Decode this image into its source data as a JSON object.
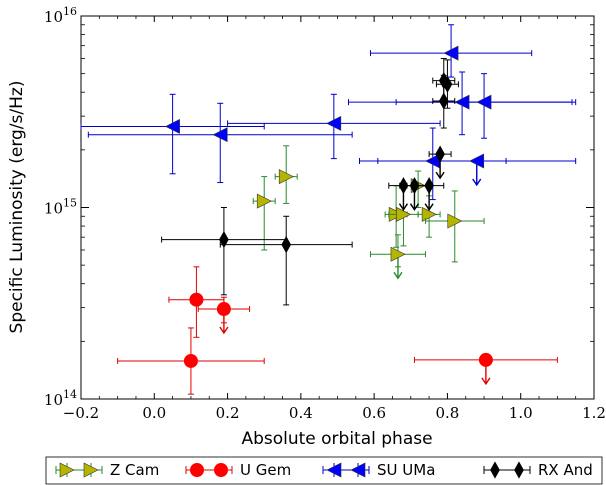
{
  "chart_data": {
    "type": "scatter",
    "title": "",
    "xlabel": "Absolute orbital phase",
    "ylabel": "Specific Luminosity (erg/s/Hz)",
    "xlim": [
      -0.2,
      1.2
    ],
    "ylim": [
      100000000000000.0,
      1e+16
    ],
    "yscale": "log",
    "x_ticks": [
      "−0.2",
      "0.0",
      "0.2",
      "0.4",
      "0.6",
      "0.8",
      "1.0",
      "1.2"
    ],
    "x_tick_values": [
      -0.2,
      0.0,
      0.2,
      0.4,
      0.6,
      0.8,
      1.0,
      1.2
    ],
    "y_ticks": [
      {
        "base": "10",
        "exp": "14",
        "value": 100000000000000.0
      },
      {
        "base": "10",
        "exp": "15",
        "value": 1000000000000000.0
      },
      {
        "base": "10",
        "exp": "16",
        "value": 1e+16
      }
    ],
    "legend_position": "bottom (outside plot)",
    "series": [
      {
        "name": "Z Cam",
        "marker": "triangle-right",
        "color": "#b5b500",
        "error_color": "#2a8a2a",
        "points": [
          {
            "x": 0.36,
            "y": 1450000000000000.0,
            "xerr": 0.03,
            "yup": 2100000000000000.0,
            "ydn": 1050000000000000.0
          },
          {
            "x": 0.3,
            "y": 1080000000000000.0,
            "xerr": 0.03,
            "yup": 1450000000000000.0,
            "ydn": 600000000000000.0
          },
          {
            "x": 0.66,
            "y": 920000000000000.0,
            "xerr": 0.03,
            "yup": 1300000000000000.0,
            "ydn": 620000000000000.0
          },
          {
            "x": 0.68,
            "y": 920000000000000.0,
            "xerr": 0.04,
            "yup": 1280000000000000.0,
            "ydn": 630000000000000.0
          },
          {
            "x": 0.72,
            "y": 1300000000000000.0,
            "xerr": 0.03,
            "yup": 1550000000000000.0,
            "ydn": 1000000000000000.0
          },
          {
            "x": 0.75,
            "y": 920000000000000.0,
            "xerr": 0.03,
            "yup": 1150000000000000.0,
            "ydn": 700000000000000.0
          },
          {
            "x": 0.82,
            "y": 850000000000000.0,
            "xerr": 0.08,
            "yup": 1220000000000000.0,
            "ydn": 520000000000000.0
          },
          {
            "x": 0.665,
            "y": 570000000000000.0,
            "xerr": 0.075,
            "yup": 720000000000000.0,
            "ydn": 490000000000000.0,
            "upper_limit": true
          }
        ]
      },
      {
        "name": "U Gem",
        "marker": "circle",
        "color": "#ff0000",
        "error_color": "#e00000",
        "points": [
          {
            "x": 0.115,
            "y": 330000000000000.0,
            "xerr": 0.075,
            "yup": 490000000000000.0,
            "ydn": 210000000000000.0
          },
          {
            "x": 0.19,
            "y": 295000000000000.0,
            "xerr": 0.07,
            "yup": 340000000000000.0,
            "ydn": 250000000000000.0,
            "upper_limit": true
          },
          {
            "x": 0.1,
            "y": 158000000000000.0,
            "xerr": 0.2,
            "yup": 235000000000000.0,
            "ydn": 106000000000000.0
          },
          {
            "x": 0.905,
            "y": 160000000000000.0,
            "xerr": 0.195,
            "yup": 160000000000000.0,
            "ydn": 160000000000000.0,
            "upper_limit": true
          }
        ]
      },
      {
        "name": "SU UMa",
        "marker": "triangle-left",
        "color": "#0000ff",
        "error_color": "#0000cc",
        "points": [
          {
            "x": 0.05,
            "y": 2650000000000000.0,
            "xerr": 0.25,
            "yup": 3900000000000000.0,
            "ydn": 1500000000000000.0
          },
          {
            "x": 0.18,
            "y": 2400000000000000.0,
            "xerr": 0.36,
            "yup": 3500000000000000.0,
            "ydn": 1350000000000000.0
          },
          {
            "x": 0.49,
            "y": 2750000000000000.0,
            "xerr": 0.29,
            "yup": 3900000000000000.0,
            "ydn": 1800000000000000.0
          },
          {
            "x": 0.81,
            "y": 6400000000000000.0,
            "xerr": 0.22,
            "yup": 9000000000000000.0,
            "ydn": 4800000000000000.0
          },
          {
            "x": 0.84,
            "y": 3550000000000000.0,
            "xerr": 0.31,
            "yup": 5100000000000000.0,
            "ydn": 2400000000000000.0
          },
          {
            "x": 0.9,
            "y": 3550000000000000.0,
            "xerr": 0.24,
            "yup": 5000000000000000.0,
            "ydn": 2300000000000000.0
          },
          {
            "x": 0.76,
            "y": 1750000000000000.0,
            "xerr": 0.2,
            "yup": 2600000000000000.0,
            "ydn": 1100000000000000.0
          },
          {
            "x": 0.88,
            "y": 1750000000000000.0,
            "xerr": 0.27,
            "yup": 1750000000000000.0,
            "ydn": 1750000000000000.0,
            "upper_limit": true
          }
        ]
      },
      {
        "name": "RX And",
        "marker": "diamond",
        "color": "#000000",
        "error_color": "#000000",
        "points": [
          {
            "x": 0.19,
            "y": 680000000000000.0,
            "xerr": 0.17,
            "yup": 1000000000000000.0,
            "ydn": 350000000000000.0
          },
          {
            "x": 0.36,
            "y": 640000000000000.0,
            "xerr": 0.18,
            "yup": 900000000000000.0,
            "ydn": 310000000000000.0
          },
          {
            "x": 0.79,
            "y": 4600000000000000.0,
            "xerr": 0.03,
            "yup": 6000000000000000.0,
            "ydn": 3500000000000000.0
          },
          {
            "x": 0.8,
            "y": 4400000000000000.0,
            "xerr": 0.03,
            "yup": 5900000000000000.0,
            "ydn": 3300000000000000.0
          },
          {
            "x": 0.79,
            "y": 3600000000000000.0,
            "xerr": 0.03,
            "yup": 4900000000000000.0,
            "ydn": 2600000000000000.0
          },
          {
            "x": 0.78,
            "y": 1900000000000000.0,
            "xerr": 0.03,
            "yup": 1900000000000000.0,
            "ydn": 1900000000000000.0,
            "upper_limit": true
          },
          {
            "x": 0.68,
            "y": 1300000000000000.0,
            "xerr": 0.04,
            "yup": 1300000000000000.0,
            "ydn": 1300000000000000.0,
            "upper_limit": true
          },
          {
            "x": 0.71,
            "y": 1300000000000000.0,
            "xerr": 0.04,
            "yup": 1300000000000000.0,
            "ydn": 1300000000000000.0,
            "upper_limit": true
          },
          {
            "x": 0.75,
            "y": 1300000000000000.0,
            "xerr": 0.04,
            "yup": 1300000000000000.0,
            "ydn": 1300000000000000.0,
            "upper_limit": true
          }
        ]
      }
    ]
  }
}
